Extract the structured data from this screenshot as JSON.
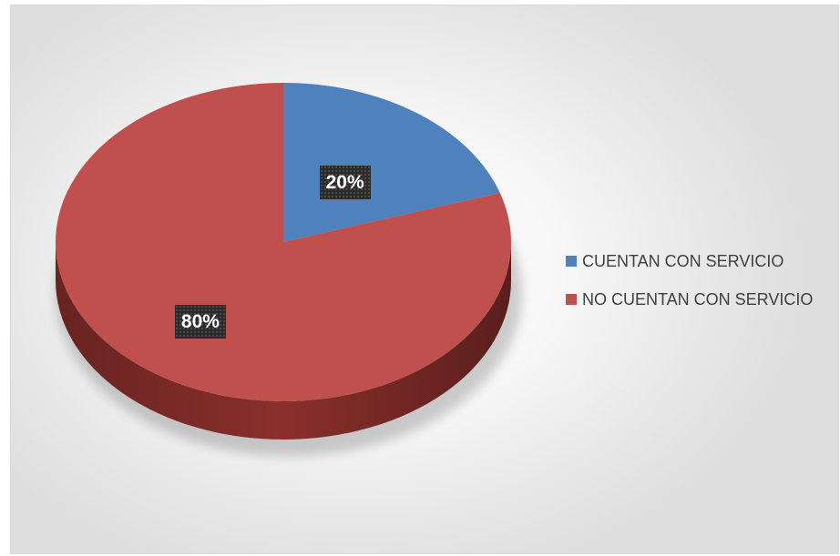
{
  "chart_data": {
    "type": "pie",
    "title": "",
    "categories": [
      "CUENTAN CON SERVICIO",
      "NO CUENTAN CON SERVICIO"
    ],
    "values": [
      20,
      80
    ],
    "data_labels": [
      "20%",
      "80%"
    ],
    "colors": [
      "#4f81bd",
      "#c0504d"
    ],
    "depth_colors": [
      "#2d4f7c",
      "#8a2f2c"
    ],
    "style": "3d-pie",
    "legend_position": "right"
  }
}
